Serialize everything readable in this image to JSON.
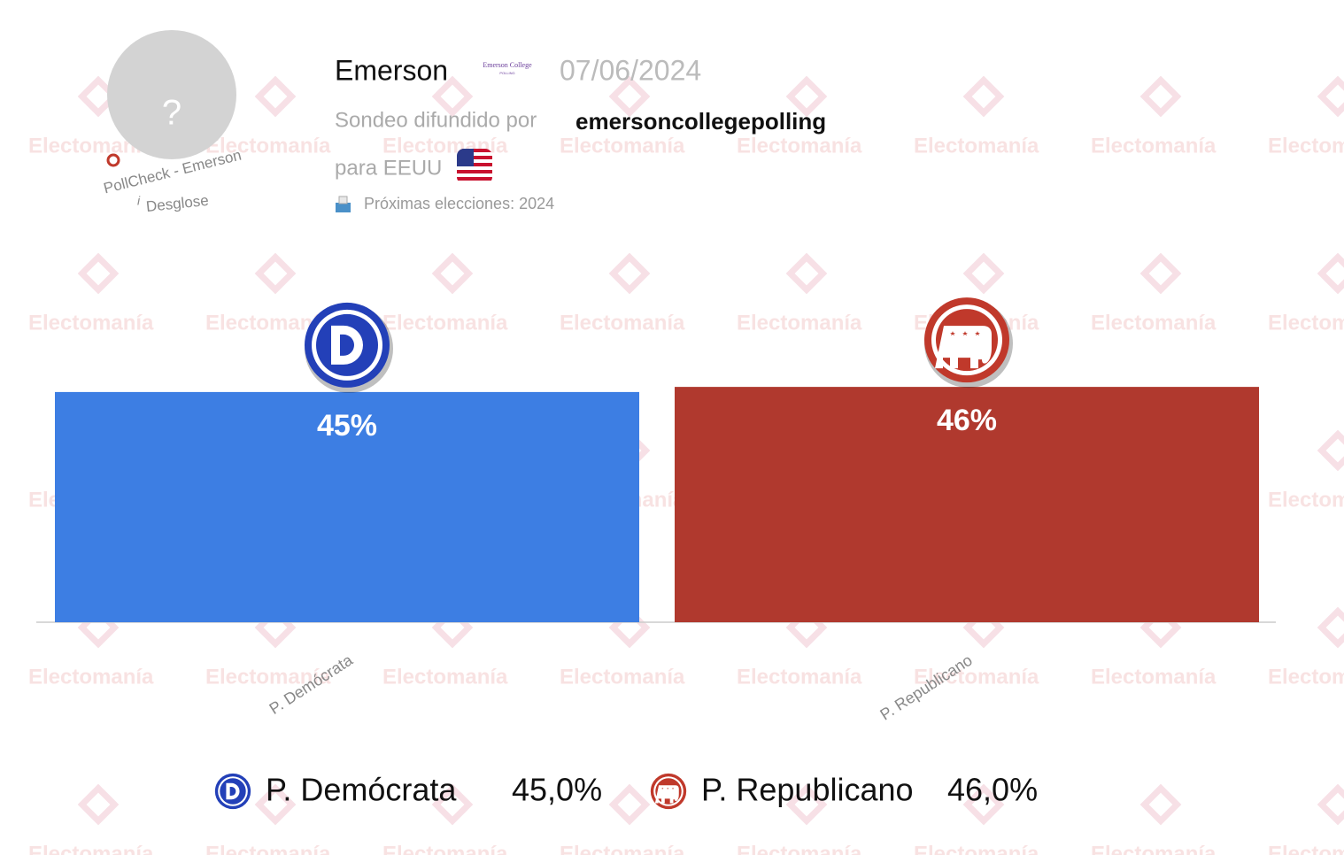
{
  "header": {
    "avatar": "?",
    "badge": "PollCheck - Emerson",
    "info_icon": "i",
    "breakdown": "Desglose",
    "pollster": "Emerson",
    "pollster_logo": [
      "Emerson College",
      "POLLING"
    ],
    "date": "07/06/2024",
    "published_by_label": "Sondeo difundido por",
    "published_by": "emersoncollegepolling",
    "region": "para EEUU",
    "next_elections": "Próximas elecciones: 2024"
  },
  "watermark": "Electomanía",
  "chart_data": {
    "type": "bar",
    "categories": [
      "P. Demócrata",
      "P. Republicano"
    ],
    "values": [
      45,
      46
    ],
    "value_labels": [
      "45%",
      "46%"
    ],
    "colors": [
      "#3d7ee3",
      "#b0392e"
    ],
    "ylim": [
      0,
      100
    ],
    "legend_labels": [
      "45,0%",
      "46,0%"
    ]
  }
}
